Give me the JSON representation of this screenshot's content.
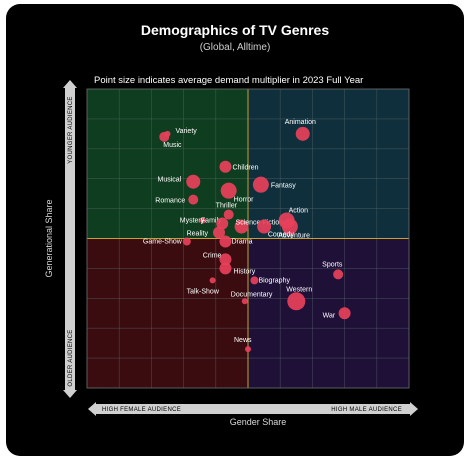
{
  "chart_data": {
    "type": "scatter",
    "title": "Demographics of TV Genres",
    "subtitle": "(Global, Alltime)",
    "note": "Point size indicates average demand multiplier in 2023 Full Year",
    "xlabel": "Gender Share",
    "ylabel": "Generational Share",
    "x_left_label": "HIGH FEMALE AUDIENCE",
    "x_right_label": "HIGH MALE AUDIENCE",
    "y_top_label": "YOUNGER AUDIENCE",
    "y_bottom_label": "OLDER AUDIENCE",
    "xlim": [
      0,
      10
    ],
    "ylim": [
      0,
      10
    ],
    "grid": true,
    "quadrant_colors": {
      "top_left": "#0f3d1f",
      "top_right": "#0f2f3d",
      "bottom_left": "#3a0c10",
      "bottom_right": "#1f1038"
    },
    "point_color": "#e8405a",
    "points": [
      {
        "label": "Animation",
        "x": 6.7,
        "y": 8.5,
        "size": 7
      },
      {
        "label": "Variety",
        "x": 2.5,
        "y": 8.5,
        "size": 3
      },
      {
        "label": "Music",
        "x": 2.4,
        "y": 8.4,
        "size": 5
      },
      {
        "label": "Children",
        "x": 4.3,
        "y": 7.4,
        "size": 6
      },
      {
        "label": "Musical",
        "x": 3.3,
        "y": 6.9,
        "size": 7
      },
      {
        "label": "Fantasy",
        "x": 5.4,
        "y": 6.8,
        "size": 8
      },
      {
        "label": "Horror",
        "x": 4.4,
        "y": 6.6,
        "size": 8
      },
      {
        "label": "Romance",
        "x": 3.3,
        "y": 6.3,
        "size": 5
      },
      {
        "label": "Thriller",
        "x": 4.4,
        "y": 5.8,
        "size": 5
      },
      {
        "label": "Family",
        "x": 3.6,
        "y": 5.6,
        "size": 3
      },
      {
        "label": "Mystery",
        "x": 4.2,
        "y": 5.5,
        "size": 6
      },
      {
        "label": "Science Fiction",
        "x": 4.8,
        "y": 5.4,
        "size": 7
      },
      {
        "label": "Action",
        "x": 6.2,
        "y": 5.6,
        "size": 8
      },
      {
        "label": "Reality",
        "x": 4.1,
        "y": 5.2,
        "size": 6
      },
      {
        "label": "Adventure",
        "x": 5.5,
        "y": 5.4,
        "size": 7
      },
      {
        "label": "Comedy",
        "x": 6.3,
        "y": 5.4,
        "size": 8
      },
      {
        "label": "Drama",
        "x": 4.3,
        "y": 4.9,
        "size": 6
      },
      {
        "label": "Game-Show",
        "x": 3.1,
        "y": 4.9,
        "size": 4
      },
      {
        "label": "Crime",
        "x": 4.3,
        "y": 4.3,
        "size": 6
      },
      {
        "label": "History",
        "x": 4.3,
        "y": 4.0,
        "size": 6
      },
      {
        "label": "Sports",
        "x": 7.8,
        "y": 3.8,
        "size": 5
      },
      {
        "label": "Biography",
        "x": 5.2,
        "y": 3.6,
        "size": 4
      },
      {
        "label": "Talk-Show",
        "x": 3.9,
        "y": 3.6,
        "size": 3
      },
      {
        "label": "Western",
        "x": 6.5,
        "y": 2.9,
        "size": 9
      },
      {
        "label": "Documentary",
        "x": 4.9,
        "y": 2.9,
        "size": 3
      },
      {
        "label": "War",
        "x": 8.0,
        "y": 2.5,
        "size": 6
      },
      {
        "label": "News",
        "x": 5.0,
        "y": 1.3,
        "size": 3
      }
    ]
  }
}
